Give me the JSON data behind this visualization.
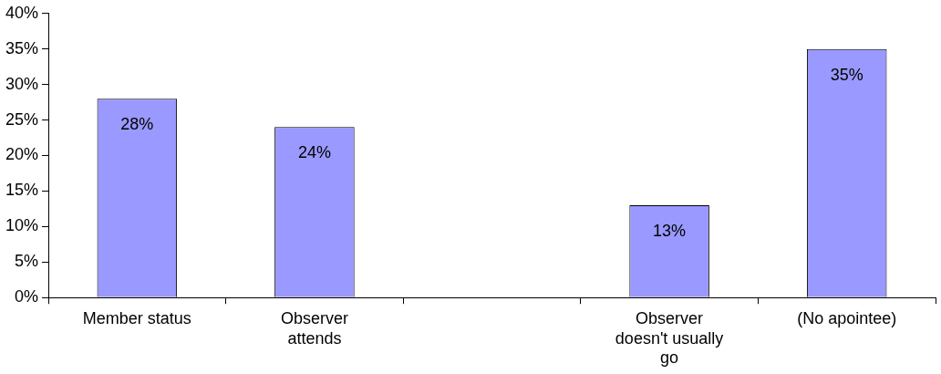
{
  "chart_data": {
    "type": "bar",
    "categories": [
      "Member status",
      "Observer attends",
      null,
      "Observer doesn't usually go",
      "(No apointee)"
    ],
    "values": [
      28,
      24,
      null,
      13,
      35
    ],
    "value_labels": [
      "28%",
      "24%",
      null,
      "13%",
      "35%"
    ],
    "color": "#9999ff",
    "ylim": [
      0,
      40
    ],
    "yticks": [
      {
        "value": 0,
        "label": "0%"
      },
      {
        "value": 5,
        "label": "5%"
      },
      {
        "value": 10,
        "label": "10%"
      },
      {
        "value": 15,
        "label": "15%"
      },
      {
        "value": 20,
        "label": "20%"
      },
      {
        "value": 25,
        "label": "25%"
      },
      {
        "value": 30,
        "label": "30%"
      },
      {
        "value": 35,
        "label": "35%"
      },
      {
        "value": 40,
        "label": "40%"
      }
    ],
    "grid": false,
    "legend": false
  }
}
